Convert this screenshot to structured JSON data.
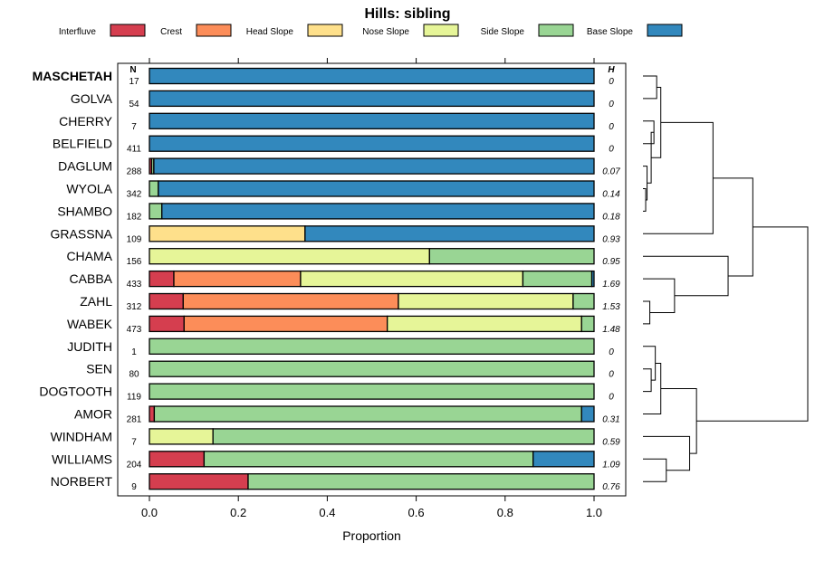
{
  "chart_data": {
    "type": "bar",
    "orientation": "horizontal",
    "stacked": true,
    "title": "Hills: sibling",
    "xlabel": "Proportion",
    "ylabel": "",
    "xlim": [
      0,
      1
    ],
    "x_ticks": [
      "0.0",
      "0.2",
      "0.4",
      "0.6",
      "0.8",
      "1.0"
    ],
    "n_header": "N",
    "h_header": "H",
    "legend_position": "top",
    "legend": [
      {
        "name": "Interfluve",
        "color": "#D53E4F"
      },
      {
        "name": "Crest",
        "color": "#FC8D59"
      },
      {
        "name": "Head Slope",
        "color": "#FEE08B"
      },
      {
        "name": "Nose Slope",
        "color": "#E6F598"
      },
      {
        "name": "Side Slope",
        "color": "#99D594"
      },
      {
        "name": "Base Slope",
        "color": "#3288BD"
      }
    ],
    "rows": [
      {
        "name": "MASCHETAH",
        "n": "17",
        "h": "0",
        "bold": true,
        "values": [
          0,
          0,
          0,
          0,
          0,
          1.0
        ]
      },
      {
        "name": "GOLVA",
        "n": "54",
        "h": "0",
        "values": [
          0,
          0,
          0,
          0,
          0,
          1.0
        ]
      },
      {
        "name": "CHERRY",
        "n": "7",
        "h": "0",
        "values": [
          0,
          0,
          0,
          0,
          0,
          1.0
        ]
      },
      {
        "name": "BELFIELD",
        "n": "411",
        "h": "0",
        "values": [
          0,
          0,
          0,
          0,
          0,
          1.0
        ]
      },
      {
        "name": "DAGLUM",
        "n": "288",
        "h": "0.07",
        "values": [
          0.005,
          0,
          0,
          0,
          0.005,
          0.99
        ]
      },
      {
        "name": "WYOLA",
        "n": "342",
        "h": "0.14",
        "values": [
          0,
          0,
          0,
          0,
          0.02,
          0.98
        ]
      },
      {
        "name": "SHAMBO",
        "n": "182",
        "h": "0.18",
        "values": [
          0,
          0,
          0,
          0,
          0.028,
          0.972
        ]
      },
      {
        "name": "GRASSNA",
        "n": "109",
        "h": "0.93",
        "values": [
          0,
          0,
          0.35,
          0,
          0,
          0.65
        ]
      },
      {
        "name": "CHAMA",
        "n": "156",
        "h": "0.95",
        "values": [
          0,
          0,
          0,
          0.63,
          0.37,
          0
        ]
      },
      {
        "name": "CABBA",
        "n": "433",
        "h": "1.69",
        "values": [
          0.055,
          0.285,
          0,
          0.5,
          0.155,
          0.005
        ]
      },
      {
        "name": "ZAHL",
        "n": "312",
        "h": "1.53",
        "values": [
          0.076,
          0.484,
          0,
          0.393,
          0.047,
          0
        ]
      },
      {
        "name": "WABEK",
        "n": "473",
        "h": "1.48",
        "values": [
          0.078,
          0.457,
          0,
          0.437,
          0.028,
          0
        ]
      },
      {
        "name": "JUDITH",
        "n": "1",
        "h": "0",
        "values": [
          0,
          0,
          0,
          0,
          1.0,
          0
        ]
      },
      {
        "name": "SEN",
        "n": "80",
        "h": "0",
        "values": [
          0,
          0,
          0,
          0,
          1.0,
          0
        ]
      },
      {
        "name": "DOGTOOTH",
        "n": "119",
        "h": "0",
        "values": [
          0,
          0,
          0,
          0,
          1.0,
          0
        ]
      },
      {
        "name": "AMOR",
        "n": "281",
        "h": "0.31",
        "values": [
          0.011,
          0,
          0,
          0,
          0.961,
          0.028
        ]
      },
      {
        "name": "WINDHAM",
        "n": "7",
        "h": "0.59",
        "values": [
          0,
          0,
          0,
          0.143,
          0.857,
          0
        ]
      },
      {
        "name": "WILLIAMS",
        "n": "204",
        "h": "1.09",
        "values": [
          0.123,
          0,
          0,
          0,
          0.74,
          0.137
        ]
      },
      {
        "name": "NORBERT",
        "n": "9",
        "h": "0.76",
        "values": [
          0.222,
          0,
          0,
          0,
          0.778,
          0
        ]
      }
    ],
    "dendrogram": {
      "type": "hierarchical-clustering",
      "leaf_order": [
        "MASCHETAH",
        "GOLVA",
        "CHERRY",
        "BELFIELD",
        "DAGLUM",
        "WYOLA",
        "SHAMBO",
        "GRASSNA",
        "CHAMA",
        "CABBA",
        "ZAHL",
        "WABEK",
        "JUDITH",
        "SEN",
        "DOGTOOTH",
        "AMOR",
        "WINDHAM",
        "WILLIAMS",
        "NORBERT"
      ],
      "merges": [
        {
          "a": 0,
          "b": 1,
          "height": 0.05
        },
        {
          "a": 2,
          "b": 3,
          "height": 0.04
        },
        {
          "a": 5,
          "b": 6,
          "height": 0.01
        },
        {
          "a": 4,
          "b": -3,
          "height": 0.015
        },
        {
          "a": -2,
          "b": -4,
          "height": 0.03
        },
        {
          "a": -1,
          "b": -5,
          "height": 0.065
        },
        {
          "a": 7,
          "b": -6,
          "height": 0.255
        },
        {
          "a": 10,
          "b": 11,
          "height": 0.025
        },
        {
          "a": 9,
          "b": -8,
          "height": 0.115
        },
        {
          "a": 8,
          "b": -9,
          "height": 0.31
        },
        {
          "a": 13,
          "b": 14,
          "height": 0.03
        },
        {
          "a": 12,
          "b": -11,
          "height": 0.045
        },
        {
          "a": 15,
          "b": -12,
          "height": 0.065
        },
        {
          "a": 17,
          "b": 18,
          "height": 0.085
        },
        {
          "a": 16,
          "b": -14,
          "height": 0.17
        },
        {
          "a": -13,
          "b": -15,
          "height": 0.195
        },
        {
          "a": -7,
          "b": -10,
          "height": 0.4
        },
        {
          "a": -17,
          "b": -16,
          "height": 0.6
        }
      ]
    }
  }
}
